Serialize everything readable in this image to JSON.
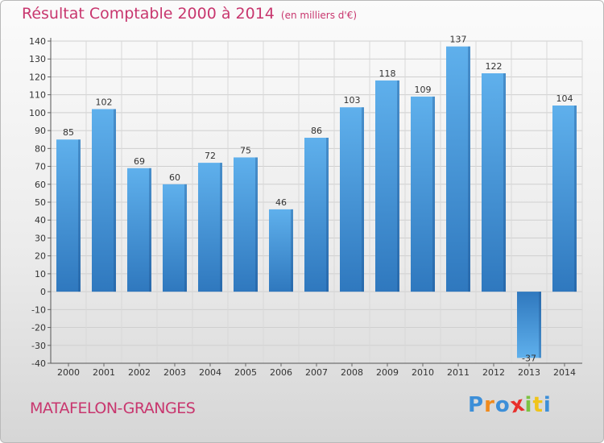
{
  "title": "Résultat Comptable 2000 à 2014",
  "subtitle": "(en milliers d'€)",
  "place": "MATAFELON-GRANGES",
  "logo": {
    "letters": [
      "P",
      "r",
      "o",
      "x",
      "i",
      "t",
      "i"
    ],
    "colors": [
      "#3d8fd8",
      "#f08a1c",
      "#3d8fd8",
      "#e8302c",
      "#7dc242",
      "#f0c419",
      "#3d8fd8"
    ]
  },
  "chart_data": {
    "type": "bar",
    "title": "Résultat Comptable 2000 à 2014",
    "subtitle": "(en milliers d'€)",
    "categories": [
      "2000",
      "2001",
      "2002",
      "2003",
      "2004",
      "2005",
      "2006",
      "2007",
      "2008",
      "2009",
      "2010",
      "2011",
      "2012",
      "2013",
      "2014"
    ],
    "values": [
      85,
      102,
      69,
      60,
      72,
      75,
      46,
      86,
      103,
      118,
      109,
      137,
      122,
      -37,
      104
    ],
    "value_labels": [
      "85",
      "102",
      "69",
      "60",
      "72",
      "75",
      "46",
      "86",
      "103",
      "118",
      "109",
      "137",
      "122",
      "-37",
      "104"
    ],
    "ylim": [
      -40,
      140
    ],
    "yticks": [
      "-40",
      "-30",
      "-20",
      "-10",
      "0",
      "10",
      "20",
      "30",
      "40",
      "50",
      "60",
      "70",
      "80",
      "90",
      "100",
      "110",
      "120",
      "130",
      "140"
    ],
    "ytick_values": [
      -40,
      -30,
      -20,
      -10,
      0,
      10,
      20,
      30,
      40,
      50,
      60,
      70,
      80,
      90,
      100,
      110,
      120,
      130,
      140
    ],
    "grid": true,
    "bar_color": "#3d8fd8"
  }
}
